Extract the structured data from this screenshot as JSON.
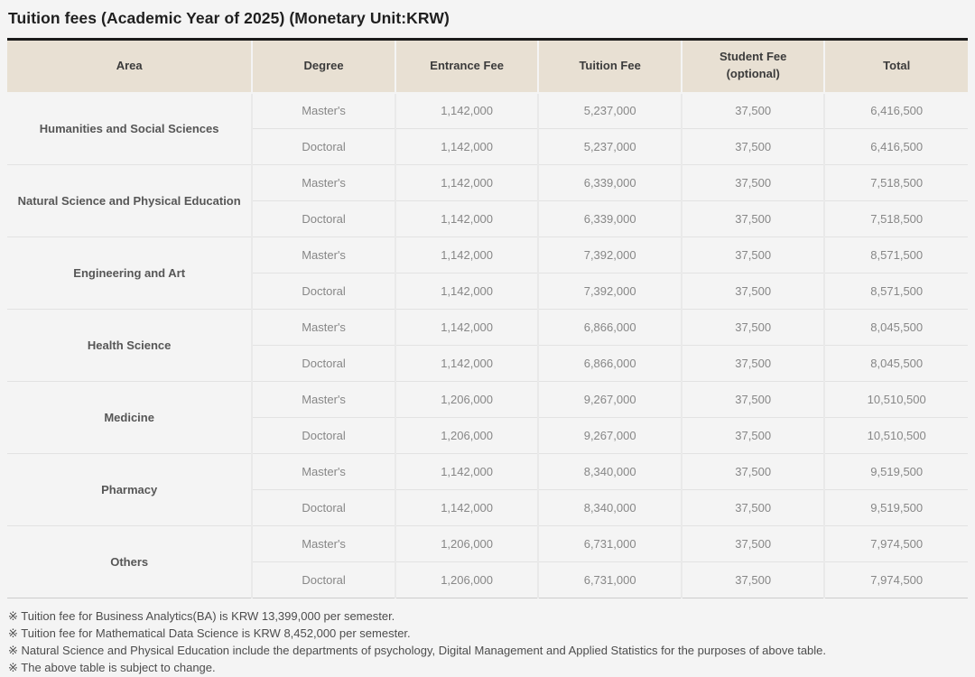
{
  "title": "Tuition fees (Academic Year of 2025) (Monetary Unit:KRW)",
  "colors": {
    "page_background": "#f4f4f4",
    "header_background": "#e8e0d3",
    "table_top_border": "#1b1b1b",
    "area_text": "#565656",
    "value_text": "#878787"
  },
  "table": {
    "headers": [
      {
        "label": "Area"
      },
      {
        "label": "Degree"
      },
      {
        "label": "Entrance Fee"
      },
      {
        "label": "Tuition Fee"
      },
      {
        "label": "Student Fee",
        "sublabel": "(optional)"
      },
      {
        "label": "Total"
      }
    ],
    "groups": [
      {
        "area": "Humanities and Social Sciences",
        "rows": [
          {
            "degree": "Master's",
            "entrance_fee": "1,142,000",
            "tuition_fee": "5,237,000",
            "student_fee": "37,500",
            "total": "6,416,500"
          },
          {
            "degree": "Doctoral",
            "entrance_fee": "1,142,000",
            "tuition_fee": "5,237,000",
            "student_fee": "37,500",
            "total": "6,416,500"
          }
        ]
      },
      {
        "area": "Natural Science and Physical Education",
        "rows": [
          {
            "degree": "Master's",
            "entrance_fee": "1,142,000",
            "tuition_fee": "6,339,000",
            "student_fee": "37,500",
            "total": "7,518,500"
          },
          {
            "degree": "Doctoral",
            "entrance_fee": "1,142,000",
            "tuition_fee": "6,339,000",
            "student_fee": "37,500",
            "total": "7,518,500"
          }
        ]
      },
      {
        "area": "Engineering and Art",
        "rows": [
          {
            "degree": "Master's",
            "entrance_fee": "1,142,000",
            "tuition_fee": "7,392,000",
            "student_fee": "37,500",
            "total": "8,571,500"
          },
          {
            "degree": "Doctoral",
            "entrance_fee": "1,142,000",
            "tuition_fee": "7,392,000",
            "student_fee": "37,500",
            "total": "8,571,500"
          }
        ]
      },
      {
        "area": "Health Science",
        "rows": [
          {
            "degree": "Master's",
            "entrance_fee": "1,142,000",
            "tuition_fee": "6,866,000",
            "student_fee": "37,500",
            "total": "8,045,500"
          },
          {
            "degree": "Doctoral",
            "entrance_fee": "1,142,000",
            "tuition_fee": "6,866,000",
            "student_fee": "37,500",
            "total": "8,045,500"
          }
        ]
      },
      {
        "area": "Medicine",
        "rows": [
          {
            "degree": "Master's",
            "entrance_fee": "1,206,000",
            "tuition_fee": "9,267,000",
            "student_fee": "37,500",
            "total": "10,510,500"
          },
          {
            "degree": "Doctoral",
            "entrance_fee": "1,206,000",
            "tuition_fee": "9,267,000",
            "student_fee": "37,500",
            "total": "10,510,500"
          }
        ]
      },
      {
        "area": "Pharmacy",
        "rows": [
          {
            "degree": "Master's",
            "entrance_fee": "1,142,000",
            "tuition_fee": "8,340,000",
            "student_fee": "37,500",
            "total": "9,519,500"
          },
          {
            "degree": "Doctoral",
            "entrance_fee": "1,142,000",
            "tuition_fee": "8,340,000",
            "student_fee": "37,500",
            "total": "9,519,500"
          }
        ]
      },
      {
        "area": "Others",
        "rows": [
          {
            "degree": "Master's",
            "entrance_fee": "1,206,000",
            "tuition_fee": "6,731,000",
            "student_fee": "37,500",
            "total": "7,974,500"
          },
          {
            "degree": "Doctoral",
            "entrance_fee": "1,206,000",
            "tuition_fee": "6,731,000",
            "student_fee": "37,500",
            "total": "7,974,500"
          }
        ]
      }
    ]
  },
  "footnotes": [
    "※ Tuition fee for Business Analytics(BA) is KRW 13,399,000 per semester.",
    "※ Tuition fee for Mathematical Data Science is KRW 8,452,000 per semester.",
    "※ Natural Science and Physical Education include the departments of psychology, Digital Management and Applied Statistics for the purposes of above table.",
    "※ The above table is subject to change."
  ]
}
